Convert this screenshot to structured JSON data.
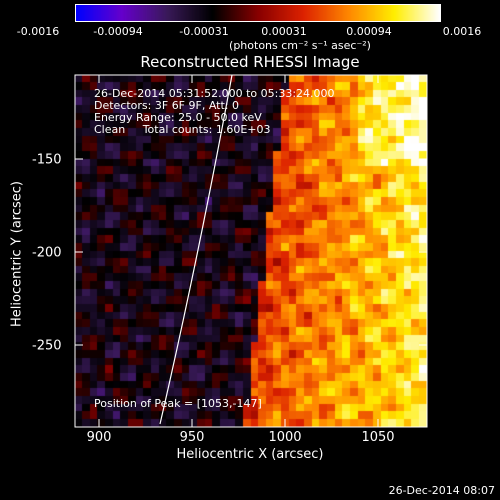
{
  "colorbar": {
    "ticks": [
      "-0.0016",
      "-0.00094",
      "-0.00031",
      "0.00031",
      "0.00094",
      "0.0016"
    ],
    "units_label": "(photons cm⁻² s⁻¹ asec⁻²)"
  },
  "plot": {
    "title": "Reconstructed RHESSI Image",
    "annotations": [
      "26-Dec-2014 05:31:52.000 to 05:33:24.000",
      "Detectors: 3F 6F 9F, Att: 0",
      "Energy Range: 25.0 - 50.0 keV",
      "Clean     Total counts: 1.60E+03"
    ],
    "peak_label": "Position of Peak = [1053,-147]",
    "xlabel": "Heliocentric X (arcsec)",
    "ylabel": "Heliocentric Y (arcsec)",
    "x_ticks": [
      "900",
      "950",
      "1000",
      "1050"
    ],
    "y_ticks": [
      "-150",
      "-200",
      "-250"
    ],
    "x_range": [
      888,
      1077
    ],
    "y_range": [
      -295,
      -112
    ],
    "limb_color": "#ffffff"
  },
  "footer": {
    "timestamp": "26-Dec-2014 08:07"
  },
  "colors": {
    "background": "#000000",
    "text": "#ffffff",
    "colormap": [
      "#0000ff",
      "#6600cc",
      "#3a1a5a",
      "#000000",
      "#880000",
      "#dd2200",
      "#ff8800",
      "#ffee00",
      "#ffffff"
    ]
  }
}
